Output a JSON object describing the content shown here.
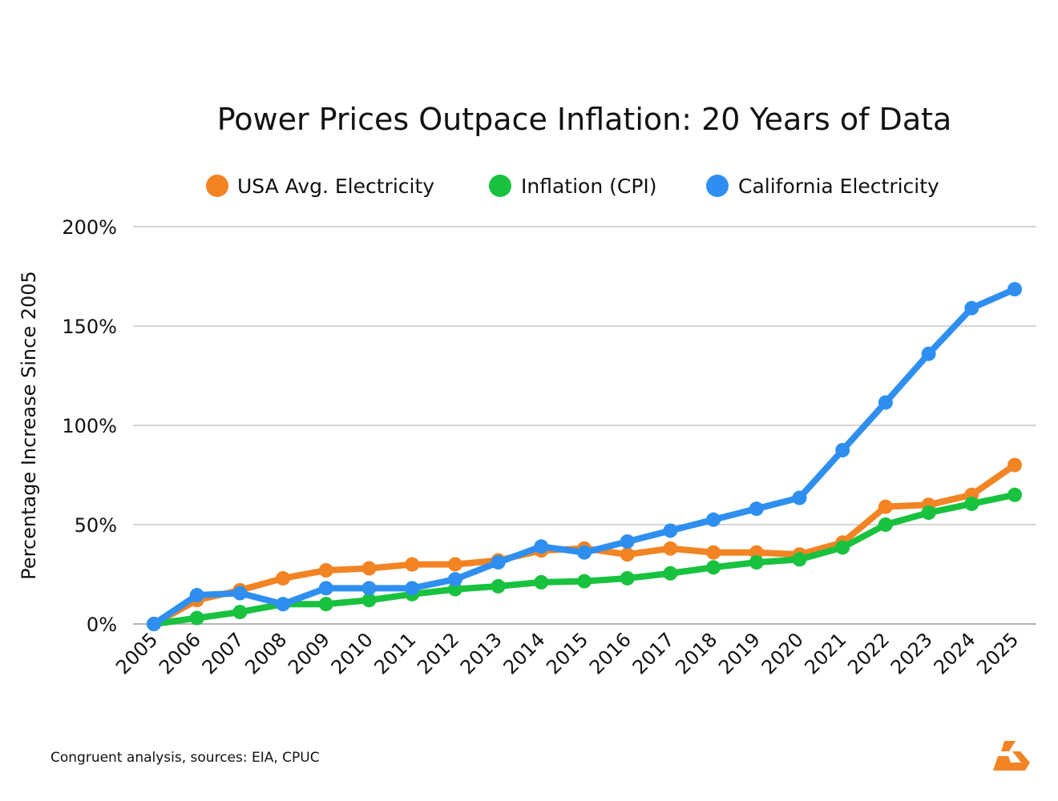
{
  "chart_data": {
    "type": "line",
    "title": "Power Prices Outpace Inflation: 20 Years of Data",
    "xlabel": "",
    "ylabel": "Percentage Increase Since 2005",
    "ylim": [
      0,
      200
    ],
    "yticks": [
      "0%",
      "50%",
      "100%",
      "150%",
      "200%"
    ],
    "ytick_values": [
      0,
      50,
      100,
      150,
      200
    ],
    "grid": true,
    "legend_position": "top",
    "categories": [
      "2005",
      "2006",
      "2007",
      "2008",
      "2009",
      "2010",
      "2011",
      "2012",
      "2013",
      "2014",
      "2015",
      "2016",
      "2017",
      "2018",
      "2019",
      "2020",
      "2021",
      "2022",
      "2023",
      "2024",
      "2025"
    ],
    "series": [
      {
        "name": "USA Avg. Electricity",
        "color": "#f28424",
        "values": [
          0,
          12,
          17,
          23,
          27,
          28,
          30,
          30,
          32,
          37,
          38,
          35,
          38,
          36,
          36,
          35,
          41,
          59,
          60,
          65,
          80
        ]
      },
      {
        "name": "Inflation (CPI)",
        "color": "#18c23e",
        "values": [
          0,
          3,
          6,
          10,
          10,
          12,
          15,
          17.5,
          19,
          21,
          21.5,
          23,
          25.5,
          28.5,
          31,
          32.5,
          38.5,
          50,
          56,
          60.5,
          65
        ]
      },
      {
        "name": "California Electricity",
        "color": "#2e8ff0",
        "values": [
          0,
          14.5,
          15.5,
          10,
          18,
          18,
          18,
          22.5,
          31,
          39,
          36,
          41.5,
          47,
          52.5,
          58,
          63.5,
          87.5,
          111.5,
          136,
          159,
          168.5
        ]
      }
    ]
  },
  "footer": {
    "source_note": "Congruent analysis, sources: EIA, CPUC",
    "logo_color": "#f28424"
  }
}
